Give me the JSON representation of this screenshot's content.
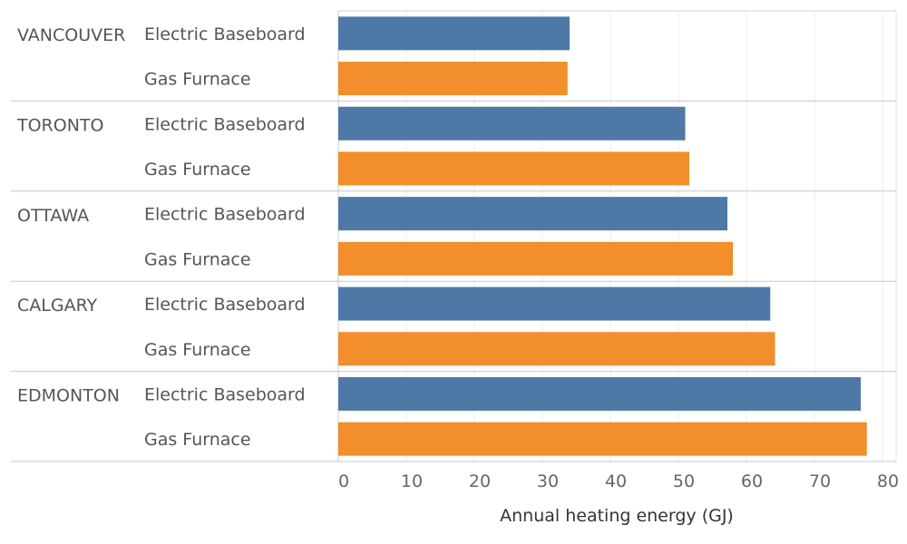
{
  "chart_data": {
    "type": "bar",
    "orientation": "horizontal",
    "grid": true,
    "xlabel": "Annual heating energy (GJ)",
    "xlim": [
      0,
      82
    ],
    "xticks": [
      0,
      10,
      20,
      30,
      40,
      50,
      60,
      70,
      80
    ],
    "groups": [
      {
        "city": "VANCOUVER",
        "bars": [
          {
            "type": "Electric Baseboard",
            "value": 34.0
          },
          {
            "type": "Gas Furnace",
            "value": 33.7
          }
        ]
      },
      {
        "city": "TORONTO",
        "bars": [
          {
            "type": "Electric Baseboard",
            "value": 51.0
          },
          {
            "type": "Gas Furnace",
            "value": 51.6
          }
        ]
      },
      {
        "city": "OTTAWA",
        "bars": [
          {
            "type": "Electric Baseboard",
            "value": 57.2
          },
          {
            "type": "Gas Furnace",
            "value": 58.0
          }
        ]
      },
      {
        "city": "CALGARY",
        "bars": [
          {
            "type": "Electric Baseboard",
            "value": 63.5
          },
          {
            "type": "Gas Furnace",
            "value": 64.2
          }
        ]
      },
      {
        "city": "EDMONTON",
        "bars": [
          {
            "type": "Electric Baseboard",
            "value": 76.8
          },
          {
            "type": "Gas Furnace",
            "value": 77.7
          }
        ]
      }
    ],
    "colors": {
      "Electric Baseboard": "#4e79a7",
      "Gas Furnace": "#f28e2b"
    }
  }
}
